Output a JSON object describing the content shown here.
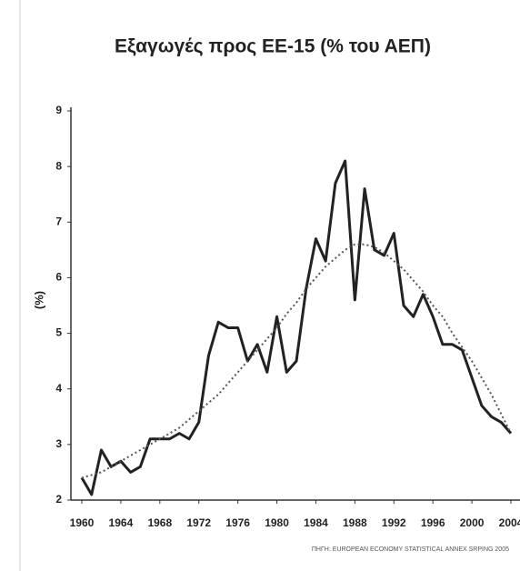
{
  "chart_data": {
    "type": "line",
    "title": "Εξαγωγές προς ΕΕ-15 (% του ΑΕΠ)",
    "y_label": "(%)",
    "source": "ΠΗΓΗ: EUROPEAN ECONOMY STATISTICAL ANNEX SRPING 2005",
    "x": [
      1960,
      1961,
      1962,
      1963,
      1964,
      1965,
      1966,
      1967,
      1968,
      1969,
      1970,
      1971,
      1972,
      1973,
      1974,
      1975,
      1976,
      1977,
      1978,
      1979,
      1980,
      1981,
      1982,
      1983,
      1984,
      1985,
      1986,
      1987,
      1988,
      1989,
      1990,
      1991,
      1992,
      1993,
      1994,
      1995,
      1996,
      1997,
      1998,
      1999,
      2000,
      2001,
      2002,
      2003,
      2004
    ],
    "series": [
      {
        "color": "#222222",
        "style": "solid",
        "values": [
          2.4,
          2.1,
          2.9,
          2.6,
          2.7,
          2.5,
          2.6,
          3.1,
          3.1,
          3.1,
          3.2,
          3.1,
          3.4,
          4.6,
          5.2,
          5.1,
          5.1,
          4.5,
          4.8,
          4.3,
          5.3,
          4.3,
          4.5,
          5.8,
          6.7,
          6.3,
          7.7,
          8.1,
          5.6,
          7.6,
          6.5,
          6.4,
          6.8,
          5.5,
          5.3,
          5.7,
          5.3,
          4.8,
          4.8,
          4.7,
          4.2,
          3.7,
          3.5,
          3.4,
          3.2
        ]
      },
      {
        "color": "#555555",
        "style": "dotted",
        "values": [
          2.4,
          2.45,
          2.5,
          2.6,
          2.7,
          2.8,
          2.9,
          3.0,
          3.1,
          3.2,
          3.3,
          3.45,
          3.6,
          3.75,
          3.9,
          4.1,
          4.3,
          4.5,
          4.7,
          4.9,
          5.1,
          5.35,
          5.55,
          5.8,
          6.0,
          6.2,
          6.35,
          6.5,
          6.6,
          6.6,
          6.55,
          6.45,
          6.3,
          6.15,
          5.95,
          5.75,
          5.5,
          5.3,
          5.0,
          4.75,
          4.5,
          4.2,
          3.9,
          3.55,
          3.2
        ]
      }
    ],
    "xlim": [
      1960,
      2004
    ],
    "xticks": [
      1960,
      1964,
      1968,
      1972,
      1976,
      1980,
      1984,
      1988,
      1992,
      1996,
      2000,
      2004
    ],
    "ylim": [
      2,
      9
    ],
    "yticks": [
      2,
      3,
      4,
      5,
      6,
      7,
      8,
      9
    ]
  }
}
